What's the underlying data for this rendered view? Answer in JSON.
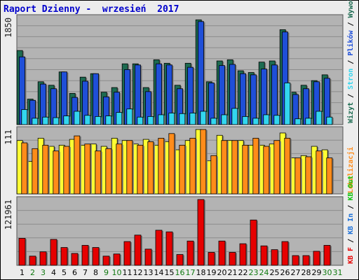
{
  "header": {
    "title": "Raport Dzienny -  wrzesień  2017"
  },
  "colors": {
    "plot_bg": "#b3b3b3",
    "frame_bg": "#ececec",
    "visits": "#1d6b51",
    "pages": "#1f4fd8",
    "files": "#33d6ee",
    "hits": "#ffff33",
    "sites": "#ff8c1a",
    "kbin": "#1a6fd8",
    "kbout": "#11c411",
    "kbf": "#e60000",
    "weekday": "#000000",
    "weekend": "#117a11"
  },
  "chart_data": [
    {
      "type": "bar",
      "panel": "top",
      "ytick": "1850",
      "ymax": 1850,
      "x": [
        1,
        2,
        3,
        4,
        5,
        6,
        7,
        8,
        9,
        10,
        11,
        12,
        13,
        14,
        15,
        16,
        17,
        18,
        19,
        20,
        21,
        22,
        23,
        24,
        25,
        26,
        27,
        28,
        29,
        30
      ],
      "series": [
        {
          "name": "Wizyty",
          "color_key": "visits",
          "values": [
            1280,
            440,
            740,
            680,
            910,
            540,
            820,
            880,
            560,
            640,
            1050,
            1050,
            640,
            1120,
            1060,
            680,
            1060,
            1810,
            740,
            1100,
            1120,
            930,
            900,
            1080,
            1100,
            1640,
            560,
            680,
            760,
            860
          ]
        },
        {
          "name": "Strony",
          "color_key": "pages",
          "values": [
            1170,
            420,
            700,
            620,
            910,
            470,
            750,
            880,
            480,
            560,
            950,
            1030,
            570,
            1050,
            1030,
            620,
            990,
            1780,
            720,
            1020,
            1040,
            880,
            860,
            960,
            1030,
            1600,
            520,
            620,
            740,
            800
          ]
        },
        {
          "name": "Pliki",
          "color_key": "files",
          "values": [
            260,
            110,
            130,
            120,
            150,
            230,
            160,
            140,
            150,
            210,
            270,
            130,
            140,
            170,
            200,
            190,
            200,
            230,
            110,
            170,
            280,
            140,
            110,
            170,
            160,
            720,
            100,
            110,
            230,
            130
          ]
        }
      ],
      "legend": [
        "Wizyt",
        "Stron",
        "Plików",
        "Wywołań"
      ]
    },
    {
      "type": "bar",
      "panel": "middle",
      "ytick": "111",
      "ymax": 111,
      "x": [
        1,
        2,
        3,
        4,
        5,
        6,
        7,
        8,
        9,
        10,
        11,
        12,
        13,
        14,
        15,
        16,
        17,
        18,
        19,
        20,
        21,
        22,
        23,
        24,
        25,
        26,
        27,
        28,
        29,
        30
      ],
      "series": [
        {
          "name": "Wywołania",
          "color_key": "hits",
          "values": [
            92,
            56,
            96,
            82,
            84,
            94,
            84,
            86,
            82,
            96,
            92,
            86,
            94,
            84,
            90,
            76,
            92,
            111,
            57,
            101,
            92,
            92,
            84,
            84,
            86,
            105,
            62,
            66,
            82,
            76
          ]
        },
        {
          "name": "Lokalizacje",
          "color_key": "sites",
          "values": [
            88,
            78,
            84,
            74,
            82,
            100,
            86,
            74,
            78,
            86,
            92,
            84,
            90,
            96,
            104,
            84,
            96,
            111,
            66,
            92,
            92,
            84,
            96,
            82,
            92,
            96,
            62,
            64,
            74,
            62
          ]
        }
      ],
      "legend": [
        "Lokalizacji"
      ]
    },
    {
      "type": "bar",
      "panel": "bottom",
      "ytick": "121961",
      "ymax": 121961,
      "x": [
        1,
        2,
        3,
        4,
        5,
        6,
        7,
        8,
        9,
        10,
        11,
        12,
        13,
        14,
        15,
        16,
        17,
        18,
        19,
        20,
        21,
        22,
        23,
        24,
        25,
        26,
        27,
        28,
        29,
        30
      ],
      "series": [
        {
          "name": "KB F",
          "color_key": "kbf",
          "values": [
            50000,
            17000,
            25000,
            48000,
            33000,
            22000,
            37000,
            33000,
            17000,
            21000,
            44000,
            56000,
            30000,
            65000,
            62000,
            20000,
            45000,
            121961,
            24000,
            45000,
            24000,
            40000,
            84000,
            36000,
            29000,
            44000,
            18000,
            18000,
            26000,
            37000
          ]
        }
      ],
      "legend": [
        "KB F",
        "KB In",
        "KB Out"
      ]
    }
  ],
  "x_axis": {
    "labels": [
      "1",
      "2",
      "3",
      "4",
      "5",
      "6",
      "7",
      "8",
      "9",
      "10",
      "11",
      "12",
      "13",
      "14",
      "15",
      "16",
      "17",
      "18",
      "19",
      "20",
      "21",
      "22",
      "23",
      "24",
      "25",
      "26",
      "27",
      "28",
      "29",
      "30",
      "31"
    ],
    "weekend": [
      false,
      true,
      true,
      false,
      false,
      false,
      false,
      false,
      true,
      true,
      false,
      false,
      false,
      false,
      false,
      true,
      true,
      false,
      false,
      false,
      false,
      false,
      true,
      true,
      false,
      false,
      false,
      false,
      false,
      true,
      true
    ]
  }
}
